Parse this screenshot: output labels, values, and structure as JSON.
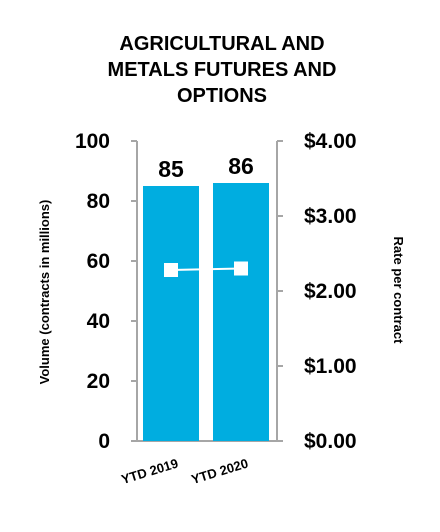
{
  "chart_data": {
    "type": "bar",
    "title_lines": [
      "AGRICULTURAL AND",
      "METALS FUTURES AND",
      "OPTIONS"
    ],
    "categories": [
      "YTD 2019",
      "YTD 2020"
    ],
    "series": [
      {
        "type": "bar",
        "axis": "left",
        "values": [
          85,
          86
        ],
        "data_labels": [
          "85",
          "86"
        ],
        "color": "#00ADE0"
      },
      {
        "type": "line",
        "axis": "right",
        "values": [
          2.28,
          2.3
        ],
        "color": "#FFFFFF",
        "marker": "square"
      }
    ],
    "ylabel": "Volume (contracts in millions)",
    "y2label": "Rate per contract",
    "ylim": [
      0,
      100
    ],
    "y2lim": [
      0,
      4
    ],
    "yticks": [
      "0",
      "20",
      "40",
      "60",
      "80",
      "100"
    ],
    "y2ticks": [
      "$0.00",
      "$1.00",
      "$2.00",
      "$3.00",
      "$4.00"
    ],
    "grid": false,
    "axis_color": "#A6A6A6"
  }
}
